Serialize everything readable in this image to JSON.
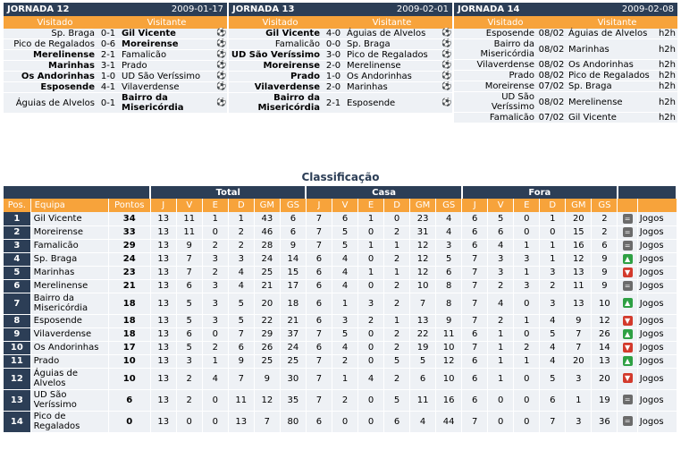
{
  "rounds": [
    {
      "title": "JORNADA 12",
      "date": "2009-01-17",
      "col_home": "Visitado",
      "col_away": "Visitante",
      "games": [
        {
          "home": "Sp. Braga",
          "result": "0-1",
          "away": "Gil Vicente",
          "winner": "away"
        },
        {
          "home": "Pico de Regalados",
          "result": "0-6",
          "away": "Moreirense",
          "winner": "away"
        },
        {
          "home": "Merelinense",
          "result": "2-1",
          "away": "Famalicão",
          "winner": "home"
        },
        {
          "home": "Marinhas",
          "result": "3-1",
          "away": "Prado",
          "winner": "home"
        },
        {
          "home": "Os Andorinhas",
          "result": "1-0",
          "away": "UD São Veríssimo",
          "winner": "home"
        },
        {
          "home": "Esposende",
          "result": "4-1",
          "away": "Vilaverdense",
          "winner": "home"
        },
        {
          "home": "Águias de Alvelos",
          "result": "0-1",
          "away": "Bairro da Misericórdia",
          "winner": "away"
        }
      ]
    },
    {
      "title": "JORNADA 13",
      "date": "2009-02-01",
      "col_home": "Visitado",
      "col_away": "Visitante",
      "games": [
        {
          "home": "Gil Vicente",
          "result": "4-0",
          "away": "Águias de Alvelos",
          "winner": "home"
        },
        {
          "home": "Famalicão",
          "result": "0-0",
          "away": "Sp. Braga",
          "winner": ""
        },
        {
          "home": "UD São Veríssimo",
          "result": "3-0",
          "away": "Pico de Regalados",
          "winner": "home"
        },
        {
          "home": "Moreirense",
          "result": "2-0",
          "away": "Merelinense",
          "winner": "home"
        },
        {
          "home": "Prado",
          "result": "1-0",
          "away": "Os Andorinhas",
          "winner": "home"
        },
        {
          "home": "Vilaverdense",
          "result": "2-0",
          "away": "Marinhas",
          "winner": "home"
        },
        {
          "home": "Bairro da Misericórdia",
          "result": "2-1",
          "away": "Esposende",
          "winner": "home"
        }
      ]
    },
    {
      "title": "JORNADA 14",
      "date": "2009-02-08",
      "col_home": "Visitado",
      "col_away": "Visitante",
      "games": [
        {
          "home": "Esposende",
          "result": "08/02",
          "away": "Águias de Alvelos",
          "link": "h2h"
        },
        {
          "home": "Bairro da Misericórdia",
          "result": "08/02",
          "away": "Marinhas",
          "link": "h2h"
        },
        {
          "home": "Vilaverdense",
          "result": "08/02",
          "away": "Os Andorinhas",
          "link": "h2h"
        },
        {
          "home": "Prado",
          "result": "08/02",
          "away": "Pico de Regalados",
          "link": "h2h"
        },
        {
          "home": "Moreirense",
          "result": "07/02",
          "away": "Sp. Braga",
          "link": "h2h"
        },
        {
          "home": "UD São Veríssimo",
          "result": "08/02",
          "away": "Merelinense",
          "link": "h2h"
        },
        {
          "home": "Famalicão",
          "result": "07/02",
          "away": "Gil Vicente",
          "link": "h2h"
        }
      ]
    }
  ],
  "standings": {
    "title": "Classificação",
    "groups": {
      "total": "Total",
      "home": "Casa",
      "away": "Fora"
    },
    "columns": {
      "pos": "Pos.",
      "team": "Equipa",
      "points": "Pontos",
      "j": "J",
      "v": "V",
      "e": "E",
      "d": "D",
      "gm": "GM",
      "gs": "GS"
    },
    "link_label": "Jogos",
    "rows": [
      {
        "pos": "1",
        "team": "Gil Vicente",
        "pts": "34",
        "t": [
          "13",
          "11",
          "1",
          "1",
          "43",
          "6"
        ],
        "h": [
          "7",
          "6",
          "1",
          "0",
          "23",
          "4"
        ],
        "a": [
          "6",
          "5",
          "0",
          "1",
          "20",
          "2"
        ],
        "move": "same"
      },
      {
        "pos": "2",
        "team": "Moreirense",
        "pts": "33",
        "t": [
          "13",
          "11",
          "0",
          "2",
          "46",
          "6"
        ],
        "h": [
          "7",
          "5",
          "0",
          "2",
          "31",
          "4"
        ],
        "a": [
          "6",
          "6",
          "0",
          "0",
          "15",
          "2"
        ],
        "move": "same"
      },
      {
        "pos": "3",
        "team": "Famalicão",
        "pts": "29",
        "t": [
          "13",
          "9",
          "2",
          "2",
          "28",
          "9"
        ],
        "h": [
          "7",
          "5",
          "1",
          "1",
          "12",
          "3"
        ],
        "a": [
          "6",
          "4",
          "1",
          "1",
          "16",
          "6"
        ],
        "move": "same"
      },
      {
        "pos": "4",
        "team": "Sp. Braga",
        "pts": "24",
        "t": [
          "13",
          "7",
          "3",
          "3",
          "24",
          "14"
        ],
        "h": [
          "6",
          "4",
          "0",
          "2",
          "12",
          "5"
        ],
        "a": [
          "7",
          "3",
          "3",
          "1",
          "12",
          "9"
        ],
        "move": "up"
      },
      {
        "pos": "5",
        "team": "Marinhas",
        "pts": "23",
        "t": [
          "13",
          "7",
          "2",
          "4",
          "25",
          "15"
        ],
        "h": [
          "6",
          "4",
          "1",
          "1",
          "12",
          "6"
        ],
        "a": [
          "7",
          "3",
          "1",
          "3",
          "13",
          "9"
        ],
        "move": "down"
      },
      {
        "pos": "6",
        "team": "Merelinense",
        "pts": "21",
        "t": [
          "13",
          "6",
          "3",
          "4",
          "21",
          "17"
        ],
        "h": [
          "6",
          "4",
          "0",
          "2",
          "10",
          "8"
        ],
        "a": [
          "7",
          "2",
          "3",
          "2",
          "11",
          "9"
        ],
        "move": "same"
      },
      {
        "pos": "7",
        "team": "Bairro da Misericórdia",
        "pts": "18",
        "t": [
          "13",
          "5",
          "3",
          "5",
          "20",
          "18"
        ],
        "h": [
          "6",
          "1",
          "3",
          "2",
          "7",
          "8"
        ],
        "a": [
          "7",
          "4",
          "0",
          "3",
          "13",
          "10"
        ],
        "move": "up"
      },
      {
        "pos": "8",
        "team": "Esposende",
        "pts": "18",
        "t": [
          "13",
          "5",
          "3",
          "5",
          "22",
          "21"
        ],
        "h": [
          "6",
          "3",
          "2",
          "1",
          "13",
          "9"
        ],
        "a": [
          "7",
          "2",
          "1",
          "4",
          "9",
          "12"
        ],
        "move": "down"
      },
      {
        "pos": "9",
        "team": "Vilaverdense",
        "pts": "18",
        "t": [
          "13",
          "6",
          "0",
          "7",
          "29",
          "37"
        ],
        "h": [
          "7",
          "5",
          "0",
          "2",
          "22",
          "11"
        ],
        "a": [
          "6",
          "1",
          "0",
          "5",
          "7",
          "26"
        ],
        "move": "up"
      },
      {
        "pos": "10",
        "team": "Os Andorinhas",
        "pts": "17",
        "t": [
          "13",
          "5",
          "2",
          "6",
          "26",
          "24"
        ],
        "h": [
          "6",
          "4",
          "0",
          "2",
          "19",
          "10"
        ],
        "a": [
          "7",
          "1",
          "2",
          "4",
          "7",
          "14"
        ],
        "move": "down"
      },
      {
        "pos": "11",
        "team": "Prado",
        "pts": "10",
        "t": [
          "13",
          "3",
          "1",
          "9",
          "25",
          "25"
        ],
        "h": [
          "7",
          "2",
          "0",
          "5",
          "5",
          "12"
        ],
        "a": [
          "6",
          "1",
          "1",
          "4",
          "20",
          "13"
        ],
        "move": "up"
      },
      {
        "pos": "12",
        "team": "Águias de Alvelos",
        "pts": "10",
        "t": [
          "13",
          "2",
          "4",
          "7",
          "9",
          "30"
        ],
        "h": [
          "7",
          "1",
          "4",
          "2",
          "6",
          "10"
        ],
        "a": [
          "6",
          "1",
          "0",
          "5",
          "3",
          "20"
        ],
        "move": "down"
      },
      {
        "pos": "13",
        "team": "UD São Veríssimo",
        "pts": "6",
        "t": [
          "13",
          "2",
          "0",
          "11",
          "12",
          "35"
        ],
        "h": [
          "7",
          "2",
          "0",
          "5",
          "11",
          "16"
        ],
        "a": [
          "6",
          "0",
          "0",
          "6",
          "1",
          "19"
        ],
        "move": "same"
      },
      {
        "pos": "14",
        "team": "Pico de Regalados",
        "pts": "0",
        "t": [
          "13",
          "0",
          "0",
          "13",
          "7",
          "80"
        ],
        "h": [
          "6",
          "0",
          "0",
          "6",
          "4",
          "44"
        ],
        "a": [
          "7",
          "0",
          "0",
          "7",
          "3",
          "36"
        ],
        "move": "same"
      }
    ]
  },
  "icons": {
    "result_icon": "ball-icon",
    "move_same": "equal-icon",
    "move_up": "arrow-up-icon",
    "move_down": "arrow-down-icon"
  },
  "colors": {
    "header_dark": "#2c3e56",
    "header_orange": "#f7a33b",
    "row_bg": "#eef1f5",
    "up": "#2ea043",
    "down": "#d33a2c",
    "same": "#6b6b6b"
  }
}
